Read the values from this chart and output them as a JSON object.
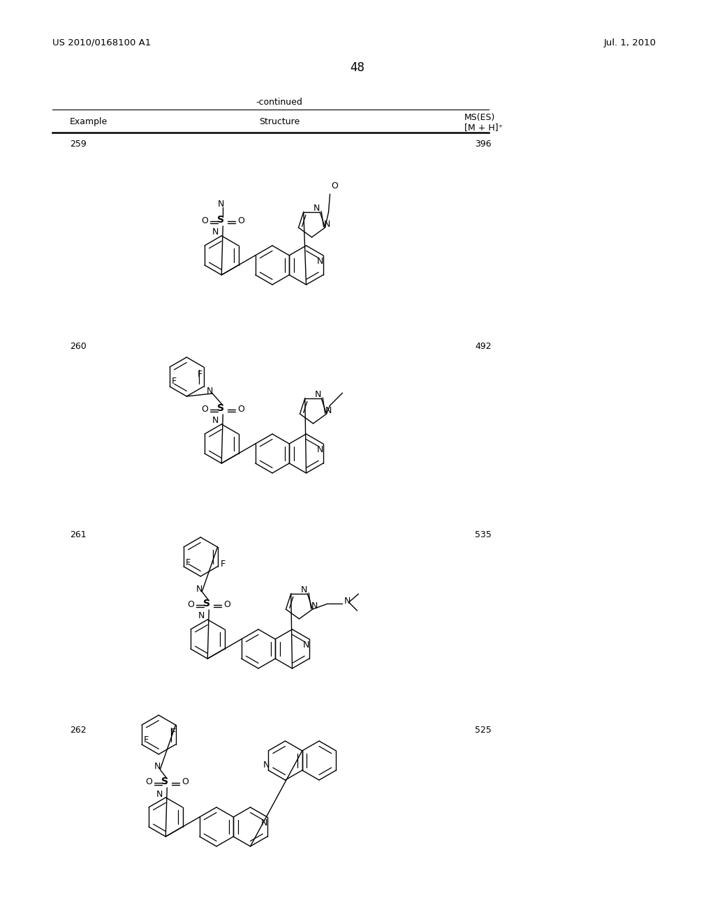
{
  "background_color": "#ffffff",
  "page_header_left": "US 2010/0168100 A1",
  "page_header_right": "Jul. 1, 2010",
  "page_number": "48",
  "table_header": "-continued",
  "col1_header": "Example",
  "col2_header": "Structure",
  "col3_header_line1": "MS(ES)",
  "col3_header_line2": "[M + H]⁺",
  "examples": [
    {
      "number": "259",
      "ms": "396"
    },
    {
      "number": "260",
      "ms": "492"
    },
    {
      "number": "261",
      "ms": "535"
    },
    {
      "number": "262",
      "ms": "525"
    }
  ],
  "line_color": "#000000",
  "text_color": "#000000"
}
